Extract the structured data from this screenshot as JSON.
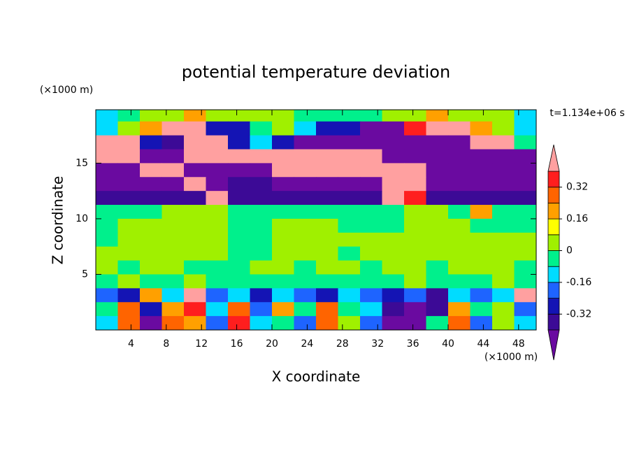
{
  "chart_data": {
    "type": "contour",
    "title": "potential temperature deviation",
    "x_label": "X coordinate",
    "y_label": "Z coordinate",
    "x_unit": "(×1000 m)",
    "y_unit": "(×1000 m)",
    "time_label": "t=1.134e+06 s",
    "xlim": [
      0,
      50
    ],
    "ylim": [
      0,
      19.8
    ],
    "xticks": [
      4,
      8,
      12,
      16,
      20,
      24,
      28,
      32,
      36,
      40,
      44,
      48
    ],
    "yticks": [
      5,
      10,
      15
    ],
    "x": [
      1.25,
      3.75,
      6.25,
      8.75,
      11.25,
      13.75,
      16.25,
      18.75,
      21.25,
      23.75,
      26.25,
      28.75,
      31.25,
      33.75,
      36.25,
      38.75,
      41.25,
      43.75,
      46.25,
      48.75
    ],
    "y": [
      19.375,
      18.125,
      16.875,
      15.625,
      14.375,
      13.125,
      11.875,
      10.625,
      9.375,
      8.125,
      6.875,
      5.625,
      4.375,
      3.125,
      1.875,
      0.625
    ],
    "values": [
      [
        -0.12,
        -0.04,
        0.04,
        0.04,
        0.2,
        0.04,
        0.04,
        0.04,
        0.04,
        -0.04,
        -0.04,
        -0.04,
        -0.04,
        0.04,
        0.04,
        0.2,
        0.04,
        0.04,
        0.04,
        -0.12
      ],
      [
        -0.12,
        0.04,
        0.2,
        0.5,
        0.5,
        -0.28,
        -0.28,
        -0.04,
        0.04,
        -0.12,
        -0.28,
        -0.28,
        -0.5,
        -0.5,
        0.36,
        0.5,
        0.5,
        0.2,
        0.04,
        -0.12
      ],
      [
        0.5,
        0.5,
        -0.28,
        -0.36,
        0.5,
        0.5,
        -0.28,
        -0.12,
        -0.28,
        -0.5,
        -0.5,
        -0.5,
        -0.5,
        -0.5,
        -0.5,
        -0.5,
        -0.5,
        0.5,
        0.5,
        -0.04
      ],
      [
        0.5,
        0.5,
        -0.5,
        -0.5,
        0.5,
        0.5,
        0.5,
        0.5,
        0.5,
        0.5,
        0.5,
        0.5,
        0.5,
        -0.5,
        -0.5,
        -0.5,
        -0.5,
        -0.5,
        -0.5,
        -0.5
      ],
      [
        -0.5,
        -0.5,
        0.5,
        0.5,
        -0.5,
        -0.5,
        -0.5,
        -0.5,
        0.5,
        0.5,
        0.5,
        0.5,
        0.5,
        0.5,
        0.5,
        -0.5,
        -0.5,
        -0.5,
        -0.5,
        -0.5
      ],
      [
        -0.5,
        -0.5,
        -0.5,
        -0.5,
        0.5,
        -0.5,
        -0.36,
        -0.36,
        -0.5,
        -0.5,
        -0.5,
        -0.5,
        -0.5,
        0.5,
        0.5,
        -0.5,
        -0.5,
        -0.5,
        -0.5,
        -0.5
      ],
      [
        -0.36,
        -0.36,
        -0.36,
        -0.36,
        -0.36,
        0.5,
        -0.36,
        -0.36,
        -0.36,
        -0.36,
        -0.36,
        -0.36,
        -0.36,
        0.5,
        0.36,
        -0.36,
        -0.36,
        -0.36,
        -0.36,
        -0.36
      ],
      [
        -0.04,
        -0.04,
        -0.04,
        0.04,
        0.04,
        0.04,
        -0.04,
        -0.04,
        -0.04,
        -0.04,
        -0.04,
        -0.04,
        -0.04,
        -0.04,
        0.04,
        0.04,
        -0.04,
        0.2,
        -0.04,
        -0.04
      ],
      [
        -0.04,
        0.04,
        0.04,
        0.04,
        0.04,
        0.04,
        -0.04,
        -0.04,
        0.04,
        0.04,
        0.04,
        -0.04,
        -0.04,
        -0.04,
        0.04,
        0.04,
        0.04,
        -0.04,
        -0.04,
        -0.04
      ],
      [
        -0.04,
        0.04,
        0.04,
        0.04,
        0.04,
        0.04,
        -0.04,
        -0.04,
        0.04,
        0.04,
        0.04,
        0.04,
        0.04,
        0.04,
        0.04,
        0.04,
        0.04,
        0.04,
        0.04,
        0.04
      ],
      [
        0.04,
        0.04,
        0.04,
        0.04,
        0.04,
        0.04,
        -0.04,
        -0.04,
        0.04,
        0.04,
        0.04,
        -0.04,
        0.04,
        0.04,
        0.04,
        0.04,
        0.04,
        0.04,
        0.04,
        0.04
      ],
      [
        0.04,
        -0.04,
        0.04,
        0.04,
        -0.04,
        -0.04,
        -0.04,
        0.04,
        0.04,
        -0.04,
        0.04,
        0.04,
        -0.04,
        0.04,
        0.04,
        -0.04,
        0.04,
        0.04,
        0.04,
        -0.04
      ],
      [
        -0.04,
        0.04,
        -0.04,
        -0.04,
        0.04,
        -0.04,
        -0.04,
        -0.04,
        -0.04,
        -0.04,
        -0.04,
        -0.04,
        -0.04,
        -0.04,
        0.04,
        -0.04,
        -0.04,
        -0.04,
        0.04,
        -0.04
      ],
      [
        -0.2,
        -0.28,
        0.2,
        -0.12,
        0.5,
        -0.2,
        -0.12,
        -0.28,
        -0.12,
        -0.2,
        -0.28,
        -0.12,
        -0.2,
        -0.28,
        -0.2,
        -0.36,
        -0.12,
        -0.2,
        -0.12,
        0.5
      ],
      [
        -0.04,
        0.28,
        -0.28,
        0.2,
        0.36,
        -0.12,
        0.28,
        -0.2,
        0.2,
        -0.04,
        0.28,
        -0.04,
        -0.12,
        -0.36,
        -0.5,
        -0.36,
        0.2,
        -0.04,
        0.04,
        -0.2
      ],
      [
        -0.12,
        0.28,
        -0.5,
        0.28,
        0.2,
        -0.2,
        0.36,
        -0.12,
        -0.04,
        -0.2,
        0.28,
        0.04,
        -0.2,
        -0.5,
        -0.5,
        -0.04,
        0.28,
        -0.2,
        0.04,
        -0.12
      ]
    ],
    "colorbar": {
      "levels": [
        -0.4,
        -0.32,
        -0.24,
        -0.16,
        -0.08,
        0,
        0.08,
        0.16,
        0.24,
        0.32,
        0.4
      ],
      "colors": [
        "#6a0aa0",
        "#3c0a96",
        "#1414b4",
        "#1e64ff",
        "#00dcff",
        "#00f08c",
        "#a0f000",
        "#ffff00",
        "#ffa000",
        "#ff6400",
        "#ff1e1e",
        "#ffa0a0"
      ],
      "ticks": [
        -0.32,
        -0.16,
        0,
        0.16,
        0.32
      ]
    }
  }
}
